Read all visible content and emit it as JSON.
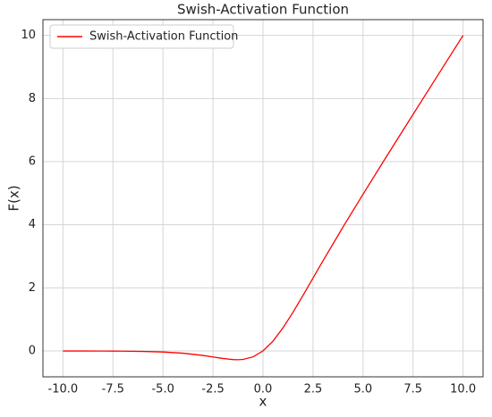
{
  "chart_data": {
    "type": "line",
    "title": "Swish-Activation Function",
    "xlabel": "x",
    "ylabel": "F(x)",
    "x": [
      -10,
      -9,
      -8,
      -7,
      -6,
      -5,
      -4,
      -3,
      -2.5,
      -2,
      -1.5,
      -1.25,
      -1,
      -0.5,
      0,
      0.5,
      1,
      1.5,
      2,
      2.5,
      3,
      4,
      5,
      6,
      7,
      8,
      9,
      10
    ],
    "series": [
      {
        "name": "Swish-Activation Function",
        "color": "#ff0000",
        "values": [
          -0.0005,
          -0.0011,
          -0.0027,
          -0.0064,
          -0.0148,
          -0.0335,
          -0.0719,
          -0.1423,
          -0.1896,
          -0.2384,
          -0.2736,
          -0.2784,
          -0.2689,
          -0.1888,
          0,
          0.3112,
          0.7311,
          1.2264,
          1.7616,
          2.3104,
          2.8577,
          3.9281,
          4.9665,
          5.9852,
          6.9936,
          7.9973,
          8.9989,
          9.9995
        ]
      }
    ],
    "xlim": [
      -11,
      11
    ],
    "ylim": [
      -0.82,
      10.5
    ],
    "xticks": [
      {
        "value": -10,
        "label": "-10.0"
      },
      {
        "value": -7.5,
        "label": "-7.5"
      },
      {
        "value": -5,
        "label": "-5.0"
      },
      {
        "value": -2.5,
        "label": "-2.5"
      },
      {
        "value": 0,
        "label": "0.0"
      },
      {
        "value": 2.5,
        "label": "2.5"
      },
      {
        "value": 5,
        "label": "5.0"
      },
      {
        "value": 7.5,
        "label": "7.5"
      },
      {
        "value": 10,
        "label": "10.0"
      }
    ],
    "yticks": [
      0,
      2,
      4,
      6,
      8,
      10
    ],
    "grid": true,
    "legend": "upper left"
  }
}
